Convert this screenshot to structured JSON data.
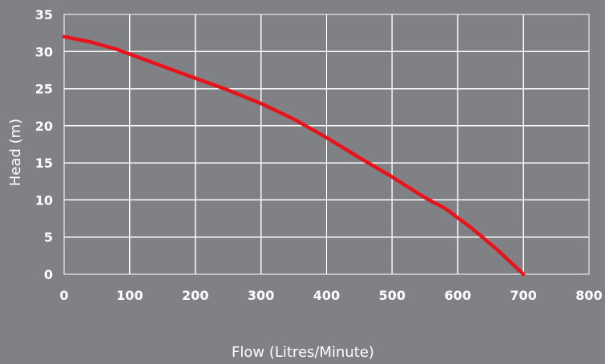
{
  "chart_data": {
    "type": "line",
    "xlabel": "Flow (Litres/Minute)",
    "ylabel": "Head (m)",
    "xlim": [
      0,
      800
    ],
    "ylim": [
      0,
      35
    ],
    "x_ticks": [
      "0",
      "100",
      "200",
      "300",
      "400",
      "500",
      "600",
      "700",
      "800"
    ],
    "y_ticks": [
      "0",
      "5",
      "10",
      "15",
      "20",
      "25",
      "30",
      "35"
    ],
    "grid": true,
    "legend": "none",
    "series": [
      {
        "x": [
          0,
          40,
          80,
          120,
          160,
          200,
          250,
          300,
          350,
          400,
          450,
          500,
          550,
          580,
          620,
          660,
          700
        ],
        "y": [
          32,
          31.3,
          30.3,
          29,
          27.7,
          26.4,
          24.8,
          23,
          20.9,
          18.4,
          15.7,
          13.1,
          10.3,
          8.9,
          6.3,
          3.3,
          0
        ],
        "color": "#e8141c"
      }
    ],
    "colors": {
      "background": "#808184",
      "grid": "#ffffff",
      "text": "#ffffff"
    }
  }
}
